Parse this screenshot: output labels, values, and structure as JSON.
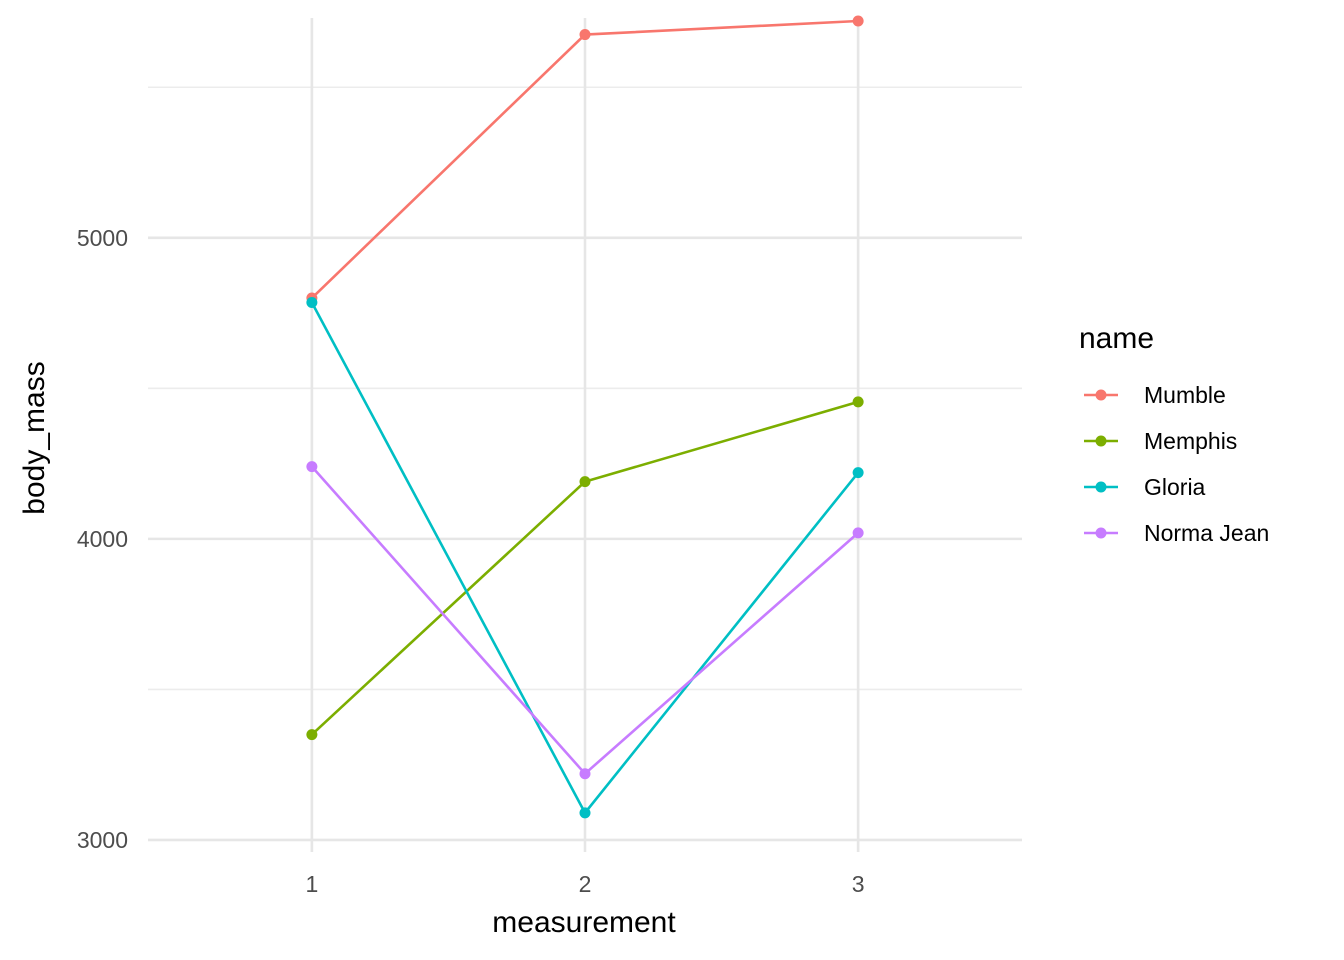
{
  "chart_data": {
    "type": "line",
    "xlabel": "measurement",
    "ylabel": "body_mass",
    "x": [
      1,
      2,
      3
    ],
    "x_ticks": [
      "1",
      "2",
      "3"
    ],
    "xlim": [
      0.4,
      3.6
    ],
    "y_ticks": [
      "3000",
      "4000",
      "5000"
    ],
    "y_tick_values": [
      3000,
      4000,
      5000
    ],
    "ylim": [
      2960,
      5730
    ],
    "grid": true,
    "legend": {
      "title": "name",
      "position": "right"
    },
    "series": [
      {
        "name": "Mumble",
        "color": "#F8766D",
        "values": [
          4800,
          5675,
          5720
        ]
      },
      {
        "name": "Memphis",
        "color": "#7CAE00",
        "values": [
          3350,
          4190,
          4455
        ]
      },
      {
        "name": "Gloria",
        "color": "#00BFC4",
        "values": [
          4785,
          3090,
          4220
        ]
      },
      {
        "name": "Norma Jean",
        "color": "#C77CFF",
        "values": [
          4240,
          3220,
          4020
        ]
      }
    ]
  }
}
